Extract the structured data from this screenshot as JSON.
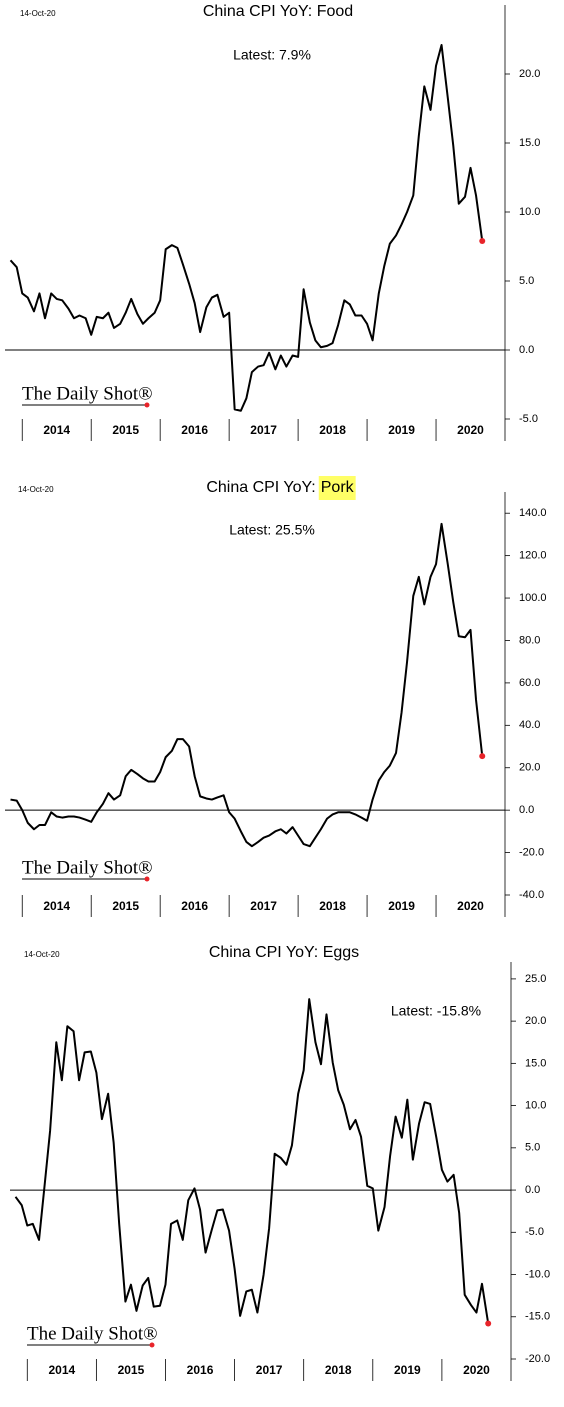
{
  "chart_data": [
    {
      "type": "line",
      "title": "China CPI YoY: Food",
      "date": "14-Oct-20",
      "annotation": "Latest:  7.9%",
      "watermark": "The Daily Shot®",
      "color": "#000000",
      "marker_color": "#e8242a",
      "xlim": [
        2013.75,
        2021
      ],
      "xticks": [
        2014,
        2015,
        2016,
        2017,
        2018,
        2019,
        2020,
        2021
      ],
      "categories": [
        "2014",
        "2015",
        "2016",
        "2017",
        "2018",
        "2019",
        "2020"
      ],
      "ylim": [
        -5,
        25
      ],
      "yticks": [
        {
          "value": -5,
          "label": "-5.0"
        },
        {
          "value": 0,
          "label": "0.0"
        },
        {
          "value": 5,
          "label": "5.0"
        },
        {
          "value": 10,
          "label": "10.0"
        },
        {
          "value": 15,
          "label": "15.0"
        },
        {
          "value": 20,
          "label": "20.0"
        }
      ],
      "x": [
        2013.83,
        2013.92,
        2014,
        2014.08,
        2014.17,
        2014.25,
        2014.33,
        2014.42,
        2014.5,
        2014.58,
        2014.67,
        2014.75,
        2014.83,
        2014.92,
        2015,
        2015.08,
        2015.17,
        2015.25,
        2015.33,
        2015.42,
        2015.5,
        2015.58,
        2015.67,
        2015.75,
        2015.83,
        2015.92,
        2016,
        2016.08,
        2016.17,
        2016.25,
        2016.33,
        2016.42,
        2016.5,
        2016.58,
        2016.67,
        2016.75,
        2016.83,
        2016.92,
        2017,
        2017.08,
        2017.17,
        2017.25,
        2017.33,
        2017.42,
        2017.5,
        2017.58,
        2017.67,
        2017.75,
        2017.83,
        2017.92,
        2018,
        2018.08,
        2018.17,
        2018.25,
        2018.33,
        2018.42,
        2018.5,
        2018.58,
        2018.67,
        2018.75,
        2018.83,
        2018.92,
        2019,
        2019.08,
        2019.17,
        2019.25,
        2019.33,
        2019.42,
        2019.5,
        2019.58,
        2019.67,
        2019.75,
        2019.83,
        2019.92,
        2020,
        2020.08,
        2020.17,
        2020.25,
        2020.33,
        2020.42,
        2020.5,
        2020.58,
        2020.67
      ],
      "values": [
        6.5,
        6.0,
        4.1,
        3.8,
        2.8,
        4.1,
        2.3,
        4.1,
        3.7,
        3.6,
        3.0,
        2.3,
        2.5,
        2.3,
        1.1,
        2.4,
        2.3,
        2.7,
        1.6,
        1.9,
        2.7,
        3.7,
        2.6,
        1.9,
        2.3,
        2.7,
        3.6,
        7.3,
        7.6,
        7.4,
        6.2,
        4.8,
        3.4,
        1.3,
        3.1,
        3.8,
        4.0,
        2.4,
        2.7,
        -4.3,
        -4.4,
        -3.5,
        -1.6,
        -1.2,
        -1.1,
        -0.2,
        -1.4,
        -0.4,
        -1.2,
        -0.4,
        -0.5,
        4.4,
        2.0,
        0.7,
        0.2,
        0.3,
        0.5,
        1.8,
        3.6,
        3.3,
        2.5,
        2.5,
        1.9,
        0.7,
        4.1,
        6.1,
        7.7,
        8.3,
        9.1,
        10.0,
        11.2,
        15.5,
        19.1,
        17.4,
        20.6,
        22.1,
        18.3,
        14.8,
        10.6,
        11.1,
        13.2,
        11.2,
        7.9
      ]
    },
    {
      "type": "line",
      "title": "China CPI YoY:",
      "title_highlight": "Pork",
      "date": "14-Oct-20",
      "annotation": "Latest:  25.5%",
      "watermark": "The Daily Shot®",
      "color": "#000000",
      "marker_color": "#e8242a",
      "highlight_color": "#ffff66",
      "xlim": [
        2013.75,
        2021
      ],
      "xticks": [
        2014,
        2015,
        2016,
        2017,
        2018,
        2019,
        2020,
        2021
      ],
      "categories": [
        "2014",
        "2015",
        "2016",
        "2017",
        "2018",
        "2019",
        "2020"
      ],
      "ylim": [
        -40,
        150
      ],
      "yticks": [
        {
          "value": -40,
          "label": "-40.0"
        },
        {
          "value": -20,
          "label": "-20.0"
        },
        {
          "value": 0,
          "label": "0.0"
        },
        {
          "value": 20,
          "label": "20.0"
        },
        {
          "value": 40,
          "label": "40.0"
        },
        {
          "value": 60,
          "label": "60.0"
        },
        {
          "value": 80,
          "label": "80.0"
        },
        {
          "value": 100,
          "label": "100.0"
        },
        {
          "value": 120,
          "label": "120.0"
        },
        {
          "value": 140,
          "label": "140.0"
        }
      ],
      "x": [
        2013.83,
        2013.92,
        2014,
        2014.08,
        2014.17,
        2014.25,
        2014.33,
        2014.42,
        2014.5,
        2014.58,
        2014.67,
        2014.75,
        2014.83,
        2014.92,
        2015,
        2015.08,
        2015.17,
        2015.25,
        2015.33,
        2015.42,
        2015.5,
        2015.58,
        2015.67,
        2015.75,
        2015.83,
        2015.92,
        2016,
        2016.08,
        2016.17,
        2016.25,
        2016.33,
        2016.42,
        2016.5,
        2016.58,
        2016.67,
        2016.75,
        2016.83,
        2016.92,
        2017,
        2017.08,
        2017.17,
        2017.25,
        2017.33,
        2017.42,
        2017.5,
        2017.58,
        2017.67,
        2017.75,
        2017.83,
        2017.92,
        2018,
        2018.08,
        2018.17,
        2018.25,
        2018.33,
        2018.42,
        2018.5,
        2018.58,
        2018.67,
        2018.75,
        2018.83,
        2018.92,
        2019,
        2019.08,
        2019.17,
        2019.25,
        2019.33,
        2019.42,
        2019.5,
        2019.58,
        2019.67,
        2019.75,
        2019.83,
        2019.92,
        2020,
        2020.08,
        2020.17,
        2020.25,
        2020.33,
        2020.42,
        2020.5,
        2020.58,
        2020.67
      ],
      "values": [
        5,
        4.5,
        0,
        -6,
        -9,
        -7,
        -7,
        -1,
        -3,
        -3.5,
        -3,
        -3,
        -3.5,
        -4.5,
        -5.5,
        -1,
        3,
        8,
        5,
        7,
        16,
        19,
        17,
        15,
        13.5,
        13.5,
        18,
        25,
        28,
        33.5,
        33.5,
        30,
        16,
        6.5,
        5.5,
        5,
        6,
        7,
        -1,
        -4,
        -10,
        -15,
        -17,
        -15,
        -13,
        -12,
        -10,
        -9,
        -11,
        -8,
        -12,
        -16,
        -17,
        -13,
        -9,
        -4,
        -2,
        -1,
        -1,
        -1,
        -2,
        -3.5,
        -5,
        5,
        14,
        18,
        21,
        27,
        46,
        70,
        101,
        110,
        97,
        110,
        116,
        135,
        116,
        98,
        82,
        81.5,
        85,
        52,
        25.5
      ]
    },
    {
      "type": "line",
      "title": "China CPI YoY: Eggs",
      "date": "14-Oct-20",
      "annotation": "Latest:  -15.8%",
      "watermark": "The Daily Shot®",
      "color": "#000000",
      "marker_color": "#e8242a",
      "xlim": [
        2013.75,
        2021
      ],
      "xticks": [
        2014,
        2015,
        2016,
        2017,
        2018,
        2019,
        2020,
        2021
      ],
      "categories": [
        "2014",
        "2015",
        "2016",
        "2017",
        "2018",
        "2019",
        "2020"
      ],
      "ylim": [
        -20,
        27
      ],
      "yticks": [
        {
          "value": -20,
          "label": "-20.0"
        },
        {
          "value": -15,
          "label": "-15.0"
        },
        {
          "value": -10,
          "label": "-10.0"
        },
        {
          "value": -5,
          "label": "-5.0"
        },
        {
          "value": 0,
          "label": "0.0"
        },
        {
          "value": 5,
          "label": "5.0"
        },
        {
          "value": 10,
          "label": "10.0"
        },
        {
          "value": 15,
          "label": "15.0"
        },
        {
          "value": 20,
          "label": "20.0"
        },
        {
          "value": 25,
          "label": "25.0"
        }
      ],
      "x": [
        2013.83,
        2013.92,
        2014,
        2014.08,
        2014.17,
        2014.25,
        2014.33,
        2014.42,
        2014.5,
        2014.58,
        2014.67,
        2014.75,
        2014.83,
        2014.92,
        2015,
        2015.08,
        2015.17,
        2015.25,
        2015.33,
        2015.42,
        2015.5,
        2015.58,
        2015.67,
        2015.75,
        2015.83,
        2015.92,
        2016,
        2016.08,
        2016.17,
        2016.25,
        2016.33,
        2016.42,
        2016.5,
        2016.58,
        2016.67,
        2016.75,
        2016.83,
        2016.92,
        2017,
        2017.08,
        2017.17,
        2017.25,
        2017.33,
        2017.42,
        2017.5,
        2017.58,
        2017.67,
        2017.75,
        2017.83,
        2017.92,
        2018,
        2018.08,
        2018.17,
        2018.25,
        2018.33,
        2018.42,
        2018.5,
        2018.58,
        2018.67,
        2018.75,
        2018.83,
        2018.92,
        2019,
        2019.08,
        2019.17,
        2019.25,
        2019.33,
        2019.42,
        2019.5,
        2019.58,
        2019.67,
        2019.75,
        2019.83,
        2019.92,
        2020,
        2020.08,
        2020.17,
        2020.25,
        2020.33,
        2020.42,
        2020.5,
        2020.58,
        2020.67
      ],
      "values": [
        -0.8,
        -1.8,
        -4.2,
        -4,
        -5.9,
        0.5,
        7,
        17.5,
        13,
        19.4,
        18.8,
        13,
        16.3,
        16.4,
        13.9,
        8.4,
        11.4,
        5.6,
        -4,
        -13.2,
        -11.2,
        -14.3,
        -11.3,
        -10.4,
        -13.8,
        -13.7,
        -11.2,
        -4,
        -3.6,
        -5.9,
        -1.2,
        0.2,
        -2.3,
        -7.4,
        -4.7,
        -2.4,
        -2.3,
        -4.8,
        -9.3,
        -14.9,
        -12,
        -11.8,
        -14.5,
        -10,
        -4.5,
        4.3,
        3.8,
        3,
        5.3,
        11.4,
        14.2,
        22.6,
        17.5,
        14.9,
        20.8,
        15.1,
        11.8,
        10.1,
        7.2,
        8.3,
        6.3,
        0.5,
        0.2,
        -4.8,
        -2,
        4,
        8.7,
        6.2,
        10.7,
        3.6,
        7.9,
        10.4,
        10.2,
        6.2,
        2.4,
        1,
        1.8,
        -2.7,
        -12.4,
        -13.6,
        -14.5,
        -11.1,
        -15.8
      ]
    }
  ]
}
